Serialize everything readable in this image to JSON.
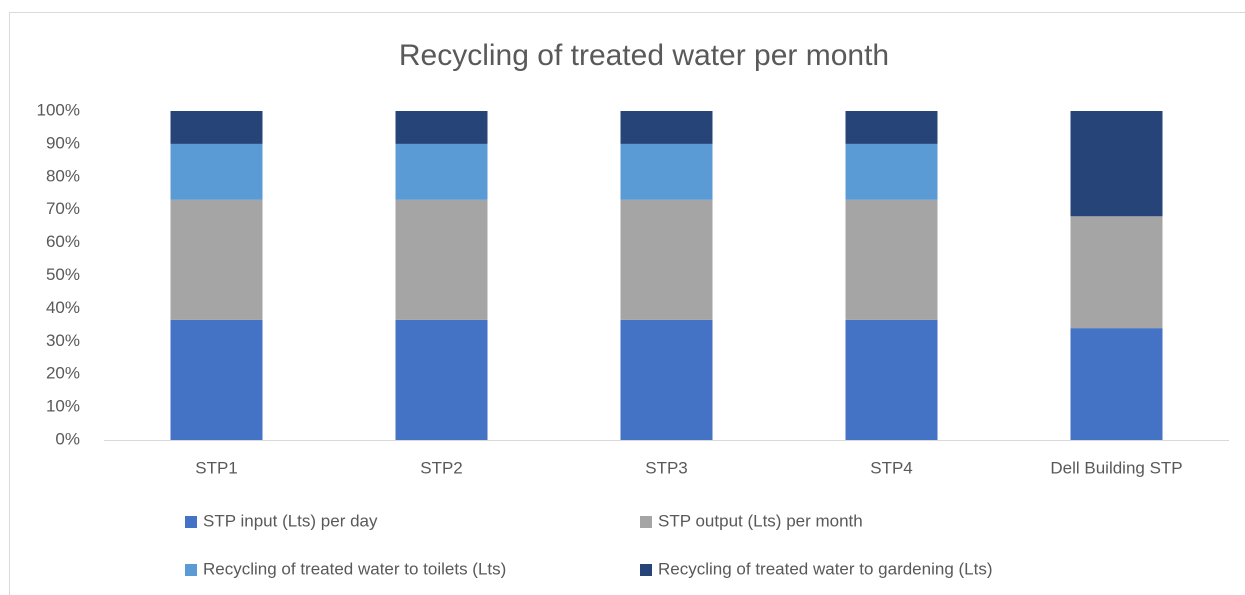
{
  "chart_data": {
    "type": "stacked_bar",
    "title": "Recycling of treated water per month",
    "categories": [
      "STP1",
      "STP2",
      "STP3",
      "STP4",
      "Dell Building STP"
    ],
    "series": [
      {
        "name": "STP input (Lts) per day",
        "color": "#4472c4",
        "values": [
          36.5,
          36.5,
          36.5,
          36.5,
          34
        ]
      },
      {
        "name": "STP output (Lts) per month",
        "color": "#a5a5a5",
        "values": [
          36.5,
          36.5,
          36.5,
          36.5,
          34
        ]
      },
      {
        "name": "Recycling of treated water to toilets (Lts)",
        "color": "#5b9bd5",
        "values": [
          17,
          17,
          17,
          17,
          0
        ]
      },
      {
        "name": "Recycling of treated water to gardening (Lts)",
        "color": "#264478",
        "values": [
          10,
          10,
          10,
          10,
          32
        ]
      }
    ],
    "ylim": [
      0,
      100
    ],
    "yticks": [
      {
        "value": 0,
        "label": "0%"
      },
      {
        "value": 10,
        "label": "10%"
      },
      {
        "value": 20,
        "label": "20%"
      },
      {
        "value": 30,
        "label": "30%"
      },
      {
        "value": 40,
        "label": "40%"
      },
      {
        "value": 50,
        "label": "50%"
      },
      {
        "value": 60,
        "label": "60%"
      },
      {
        "value": 70,
        "label": "70%"
      },
      {
        "value": 80,
        "label": "80%"
      },
      {
        "value": 90,
        "label": "90%"
      },
      {
        "value": 100,
        "label": "100%"
      }
    ],
    "grid": false,
    "legend": "bottom"
  }
}
